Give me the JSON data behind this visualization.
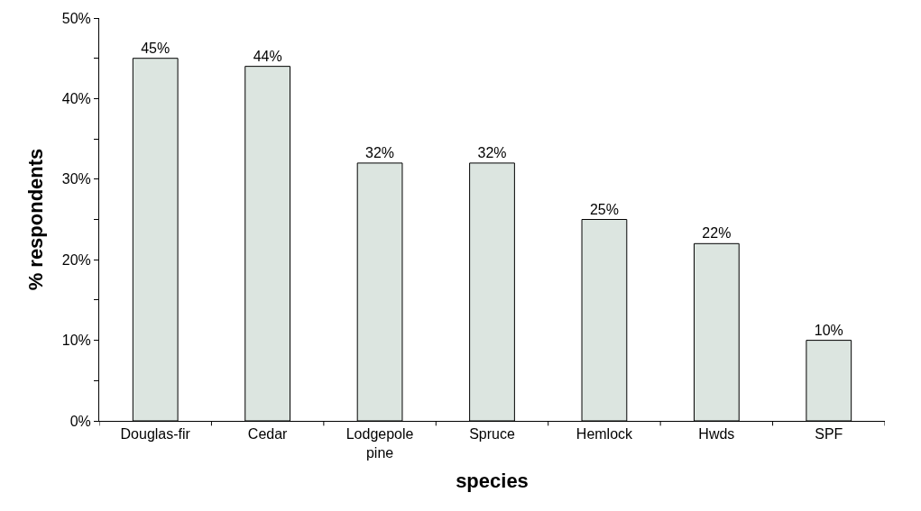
{
  "chart_data": {
    "type": "bar",
    "xlabel": "species",
    "ylabel": "% respondents",
    "categories": [
      "Douglas-fir",
      "Cedar",
      "Lodgepole pine",
      "Spruce",
      "Hemlock",
      "Hwds",
      "SPF"
    ],
    "values": [
      45,
      44,
      32,
      32,
      25,
      22,
      10
    ],
    "value_labels": [
      "45%",
      "44%",
      "32%",
      "32%",
      "25%",
      "22%",
      "10%"
    ],
    "color": "#dce5e0",
    "ylim": [
      0,
      50
    ],
    "yticks": [
      {
        "value": 0,
        "label": "0%"
      },
      {
        "value": 5,
        "label": null
      },
      {
        "value": 10,
        "label": "10%"
      },
      {
        "value": 15,
        "label": null
      },
      {
        "value": 20,
        "label": "20%"
      },
      {
        "value": 25,
        "label": null
      },
      {
        "value": 30,
        "label": "30%"
      },
      {
        "value": 35,
        "label": null
      },
      {
        "value": 40,
        "label": "40%"
      },
      {
        "value": 45,
        "label": null
      },
      {
        "value": 50,
        "label": "50%"
      }
    ]
  }
}
